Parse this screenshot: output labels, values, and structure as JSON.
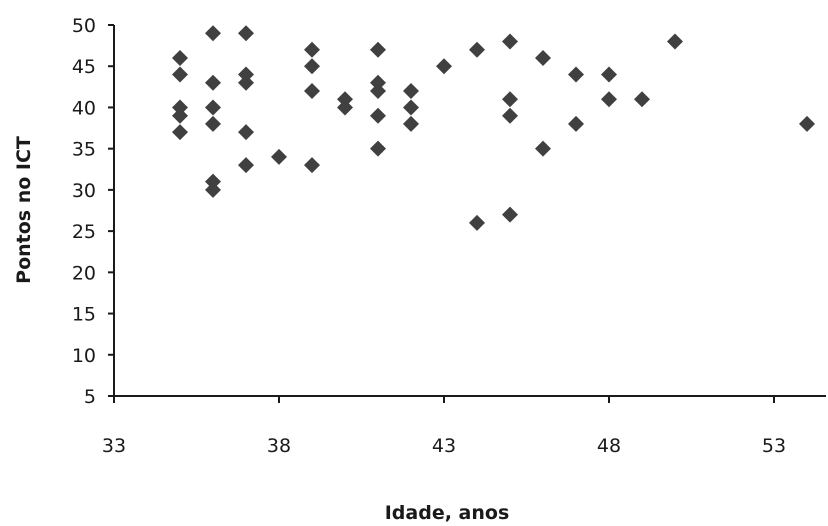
{
  "chart_data": {
    "type": "scatter",
    "title": "",
    "xlabel": "Idade, anos",
    "ylabel": "Pontos no ICT",
    "xlim": [
      33,
      55
    ],
    "ylim": [
      5,
      50
    ],
    "xticks": [
      33,
      38,
      43,
      48,
      53
    ],
    "yticks": [
      5,
      10,
      15,
      20,
      25,
      30,
      35,
      40,
      45,
      50
    ],
    "grid": false,
    "legend": "none",
    "marker": "diamond",
    "colors": {
      "marker": "#404040",
      "axis": "#1a1a1a"
    },
    "points": [
      [
        35,
        46
      ],
      [
        35,
        44
      ],
      [
        35,
        40
      ],
      [
        35,
        39
      ],
      [
        35,
        37
      ],
      [
        36,
        49
      ],
      [
        36,
        43
      ],
      [
        36,
        40
      ],
      [
        36,
        38
      ],
      [
        36,
        31
      ],
      [
        36,
        30
      ],
      [
        37,
        49
      ],
      [
        37,
        44
      ],
      [
        37,
        43
      ],
      [
        37,
        37
      ],
      [
        37,
        33
      ],
      [
        38,
        34
      ],
      [
        39,
        47
      ],
      [
        39,
        45
      ],
      [
        39,
        42
      ],
      [
        39,
        33
      ],
      [
        40,
        41
      ],
      [
        40,
        40
      ],
      [
        41,
        47
      ],
      [
        41,
        43
      ],
      [
        41,
        42
      ],
      [
        41,
        39
      ],
      [
        41,
        35
      ],
      [
        42,
        42
      ],
      [
        42,
        40
      ],
      [
        42,
        38
      ],
      [
        43,
        45
      ],
      [
        44,
        47
      ],
      [
        44,
        26
      ],
      [
        45,
        48
      ],
      [
        45,
        41
      ],
      [
        45,
        39
      ],
      [
        45,
        27
      ],
      [
        46,
        46
      ],
      [
        46,
        35
      ],
      [
        47,
        44
      ],
      [
        47,
        38
      ],
      [
        48,
        44
      ],
      [
        48,
        41
      ],
      [
        49,
        41
      ],
      [
        50,
        48
      ],
      [
        54,
        38
      ]
    ]
  }
}
